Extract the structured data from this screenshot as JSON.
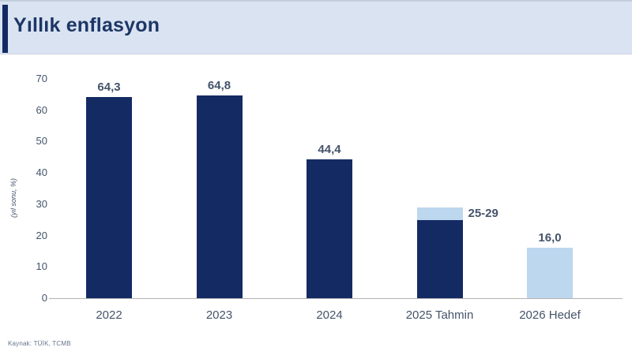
{
  "header": {
    "title": "Yıllık enflasyon"
  },
  "colors": {
    "navy": "#142a63",
    "light_blue": "#bdd7ee",
    "header_bg": "#dae3f1",
    "title_text": "#1c3667",
    "axis_text": "#44546a",
    "axis_line": "#b3b3b3"
  },
  "chart_data": {
    "type": "bar",
    "title": "Yıllık enflasyon",
    "xlabel": "",
    "ylabel": "(yıl sonu, %)",
    "ylim": [
      0,
      70
    ],
    "yticks": [
      0,
      10,
      20,
      30,
      40,
      50,
      60,
      70
    ],
    "grid": false,
    "legend": "none",
    "categories": [
      "2022",
      "2023",
      "2024",
      "2025 Tahmin",
      "2026 Hedef"
    ],
    "bars": [
      {
        "category": "2022",
        "value": 64.3,
        "label": "64,3",
        "label_position": "above",
        "segments": [
          {
            "from": 0,
            "to": 64.3,
            "color": "navy"
          }
        ]
      },
      {
        "category": "2023",
        "value": 64.8,
        "label": "64,8",
        "label_position": "above",
        "segments": [
          {
            "from": 0,
            "to": 64.8,
            "color": "navy"
          }
        ]
      },
      {
        "category": "2024",
        "value": 44.4,
        "label": "44,4",
        "label_position": "above",
        "segments": [
          {
            "from": 0,
            "to": 44.4,
            "color": "navy"
          }
        ]
      },
      {
        "category": "2025 Tahmin",
        "value_range": [
          25,
          29
        ],
        "label": "25-29",
        "label_position": "right",
        "segments": [
          {
            "from": 0,
            "to": 25,
            "color": "navy"
          },
          {
            "from": 25,
            "to": 29,
            "color": "light_blue"
          }
        ]
      },
      {
        "category": "2026 Hedef",
        "value": 16.0,
        "label": "16,0",
        "label_position": "above",
        "segments": [
          {
            "from": 0,
            "to": 16,
            "color": "light_blue"
          }
        ]
      }
    ]
  },
  "footer": {
    "source": "Kaynak: TÜİK, TCMB"
  }
}
